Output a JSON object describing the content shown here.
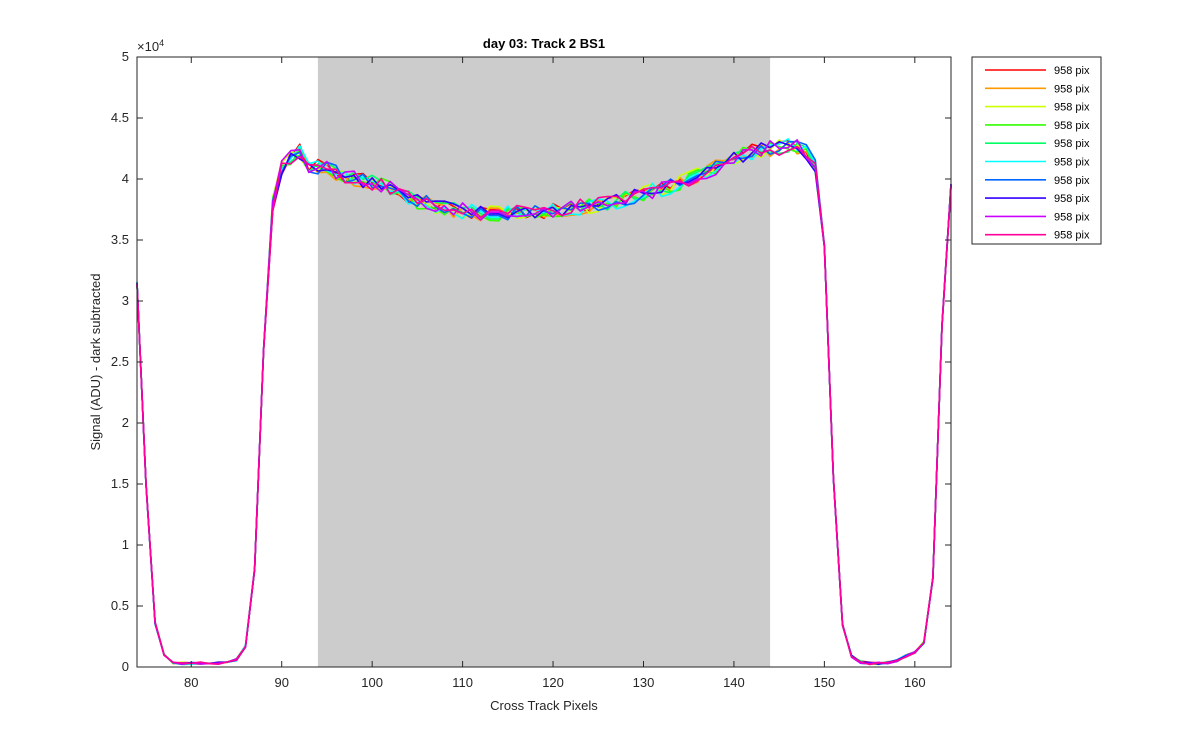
{
  "chart_data": {
    "type": "line",
    "title": "day 03: Track 2  BS1",
    "xlabel": "Cross Track Pixels",
    "ylabel": "Signal (ADU) - dark subtracted",
    "y_exponent_label": "×10",
    "y_exponent_power": "4",
    "xlim": [
      74,
      164
    ],
    "ylim": [
      0,
      5
    ],
    "x_ticks": [
      80,
      90,
      100,
      110,
      120,
      130,
      140,
      150,
      160
    ],
    "y_ticks": [
      0,
      0.5,
      1,
      1.5,
      2,
      2.5,
      3,
      3.5,
      4,
      4.5,
      5
    ],
    "y_tick_labels": [
      "0",
      "0.5",
      "1",
      "1.5",
      "2",
      "2.5",
      "3",
      "3.5",
      "4",
      "4.5",
      "5"
    ],
    "shaded_region": {
      "x_start": 94,
      "x_end": 144,
      "color": "#cccccc"
    },
    "grid": false,
    "legend_position": "outside-top-right",
    "x": [
      74,
      75,
      76,
      77,
      78,
      79,
      80,
      81,
      82,
      83,
      84,
      85,
      86,
      87,
      88,
      89,
      90,
      91,
      92,
      93,
      94,
      95,
      96,
      97,
      98,
      99,
      100,
      101,
      102,
      103,
      104,
      105,
      106,
      107,
      108,
      109,
      110,
      111,
      112,
      113,
      114,
      115,
      116,
      117,
      118,
      119,
      120,
      121,
      122,
      123,
      124,
      125,
      126,
      127,
      128,
      129,
      130,
      131,
      132,
      133,
      134,
      135,
      136,
      137,
      138,
      139,
      140,
      141,
      142,
      143,
      144,
      145,
      146,
      147,
      148,
      149,
      150,
      151,
      152,
      153,
      154,
      155,
      156,
      157,
      158,
      159,
      160,
      161,
      162,
      163,
      164
    ],
    "base_profile": [
      3.15,
      1.5,
      0.36,
      0.1,
      0.035,
      0.03,
      0.03,
      0.03,
      0.03,
      0.032,
      0.035,
      0.06,
      0.17,
      0.8,
      2.6,
      3.8,
      4.1,
      4.18,
      4.22,
      4.1,
      4.1,
      4.08,
      4.05,
      4.02,
      4.0,
      3.98,
      3.97,
      3.95,
      3.92,
      3.88,
      3.85,
      3.82,
      3.8,
      3.78,
      3.76,
      3.75,
      3.74,
      3.73,
      3.72,
      3.72,
      3.72,
      3.72,
      3.72,
      3.73,
      3.73,
      3.74,
      3.75,
      3.75,
      3.76,
      3.77,
      3.78,
      3.79,
      3.8,
      3.82,
      3.84,
      3.86,
      3.88,
      3.9,
      3.92,
      3.94,
      3.97,
      4.0,
      4.03,
      4.06,
      4.1,
      4.14,
      4.18,
      4.2,
      4.22,
      4.24,
      4.25,
      4.26,
      4.27,
      4.26,
      4.22,
      4.1,
      3.45,
      1.55,
      0.35,
      0.09,
      0.04,
      0.03,
      0.03,
      0.035,
      0.05,
      0.09,
      0.12,
      0.2,
      0.73,
      2.8,
      3.95
    ],
    "series": [
      {
        "name": "958 pix",
        "color": "#ff0000",
        "seed": 1
      },
      {
        "name": "958 pix",
        "color": "#ff9900",
        "seed": 2
      },
      {
        "name": "958 pix",
        "color": "#ccff00",
        "seed": 3
      },
      {
        "name": "958 pix",
        "color": "#33ff00",
        "seed": 4
      },
      {
        "name": "958 pix",
        "color": "#00ff66",
        "seed": 5
      },
      {
        "name": "958 pix",
        "color": "#00ffff",
        "seed": 6
      },
      {
        "name": "958 pix",
        "color": "#0066ff",
        "seed": 7
      },
      {
        "name": "958 pix",
        "color": "#3300ff",
        "seed": 8
      },
      {
        "name": "958 pix",
        "color": "#cc00ff",
        "seed": 9
      },
      {
        "name": "958 pix",
        "color": "#ff0099",
        "seed": 10
      }
    ]
  }
}
